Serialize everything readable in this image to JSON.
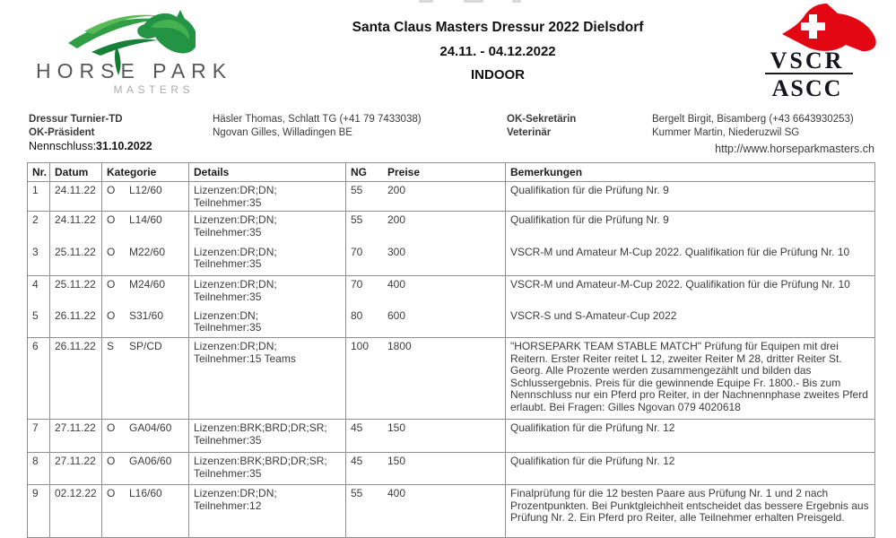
{
  "header": {
    "title": "Santa Claus Masters Dressur 2022 Dielsdorf",
    "date_range": "24.11. - 04.12.2022",
    "venue": "INDOOR"
  },
  "logo_left": {
    "icon": "green-horse-head-icon",
    "wordmark": "HORSE PARK",
    "subtitle": "MASTERS",
    "green_dark": "#157a33",
    "green_mid": "#2f9e45",
    "green_light": "#58bb58",
    "gray_text": "#565859"
  },
  "logo_right": {
    "icon": "red-horse-head-swiss-cross-icon",
    "line1": "VSCR",
    "line2": "ASCC",
    "red": "#e30613",
    "text_color": "#15151f"
  },
  "contacts": [
    {
      "label": "Dressur Turnier-TD",
      "value": "Häsler Thomas, Schlatt TG (+41 79 7433038)"
    },
    {
      "label": "OK-Präsident",
      "value": "Ngovan Gilles, Willadingen BE"
    },
    {
      "label": "OK-Sekretärin",
      "value": "Bergelt Birgit, Bisamberg (+43 6643930253)"
    },
    {
      "label": "Veterinär",
      "value": "Kummer Martin, Niederuzwil SG"
    }
  ],
  "nennschluss": {
    "label": "Nennschluss:",
    "value": "31.10.2022"
  },
  "website": "http://www.horseparkmasters.ch",
  "table": {
    "headers": {
      "nr": "Nr.",
      "datum": "Datum",
      "kategorie": "Kategorie",
      "details": "Details",
      "ng": "NG",
      "preise": "Preise",
      "bemerkungen": "Bemerkungen"
    },
    "rows": [
      {
        "nr": "1",
        "datum": "24.11.22",
        "kat_letter": "O",
        "kat_code": "L12/60",
        "det1": "Lizenzen:DR;DN;",
        "det2": "Teilnehmer:35",
        "ng": "55",
        "preise": "200",
        "bem": "Qualifikation für die Prüfung Nr. 9"
      },
      {
        "nr": "2",
        "datum": "24.11.22",
        "kat_letter": "O",
        "kat_code": "L14/60",
        "det1": "Lizenzen:DR;DN;",
        "det2": "Teilnehmer:35",
        "ng": "55",
        "preise": "200",
        "bem": "Qualifikation für die Prüfung Nr. 9"
      },
      {
        "nr": "3",
        "datum": "25.11.22",
        "kat_letter": "O",
        "kat_code": "M22/60",
        "det1": "Lizenzen:DR;DN;",
        "det2": "Teilnehmer:35",
        "ng": "70",
        "preise": "300",
        "bem": "VSCR-M und Amateur M-Cup 2022.  Qualifikation für die Prüfung Nr. 10"
      },
      {
        "nr": "4",
        "datum": "25.11.22",
        "kat_letter": "O",
        "kat_code": "M24/60",
        "det1": "Lizenzen:DR;DN;",
        "det2": "Teilnehmer:35",
        "ng": "70",
        "preise": "400",
        "bem": "VSCR-M und Amateur-M-Cup 2022. Qualifikation für die Prüfung Nr. 10"
      },
      {
        "nr": "5",
        "datum": "26.11.22",
        "kat_letter": "O",
        "kat_code": "S31/60",
        "det1": "Lizenzen:DN;",
        "det2": "Teilnehmer:35",
        "ng": "80",
        "preise": "600",
        "bem": "VSCR-S und S-Amateur-Cup 2022"
      },
      {
        "nr": "6",
        "datum": "26.11.22",
        "kat_letter": "S",
        "kat_code": "SP/CD",
        "det1": "Lizenzen:DR;DN;",
        "det2": "Teilnehmer:15 Teams",
        "ng": "100",
        "preise": "1800",
        "bem": "\"HORSEPARK TEAM STABLE MATCH\" Prüfung für Equipen mit drei Reitern. Erster Reiter reitet L 12, zweiter Reiter M 28, dritter Reiter St. Georg. Alle Prozente werden zusammengezählt und bilden das Schlussergebnis. Preis für die gewinnende Equipe Fr. 1800.- Bis zum Nennschluss nur ein Pferd pro Reiter, in der Nachnennphase zweites Pferd erlaubt. Bei Fragen: Gilles Ngovan 079 4020618"
      },
      {
        "nr": "7",
        "datum": "27.11.22",
        "kat_letter": "O",
        "kat_code": "GA04/60",
        "det1": "Lizenzen:BRK;BRD;DR;SR;",
        "det2": "Teilnehmer:35",
        "ng": "45",
        "preise": "150",
        "bem": "Qualifikation für die Prüfung Nr. 12"
      },
      {
        "nr": "8",
        "datum": "27.11.22",
        "kat_letter": "O",
        "kat_code": "GA06/60",
        "det1": "Lizenzen:BRK;BRD;DR;SR;",
        "det2": "Teilnehmer:35",
        "ng": "45",
        "preise": "150",
        "bem": "Qualifikation für die Prüfung Nr. 12"
      },
      {
        "nr": "9",
        "datum": "02.12.22",
        "kat_letter": "O",
        "kat_code": "L16/60",
        "det1": "Lizenzen:DR;DN;",
        "det2": "Teilnehmer:12",
        "ng": "55",
        "preise": "400",
        "bem": "Finalprüfung für die 12 besten Paare aus Prüfung Nr. 1 und 2 nach Prozentpunkten. Bei Punktgleichheit entscheidet das bessere Ergebnis aus Prüfung Nr. 2. Ein Pferd pro Reiter, alle Teilnehmer erhalten Preisgeld."
      }
    ]
  }
}
